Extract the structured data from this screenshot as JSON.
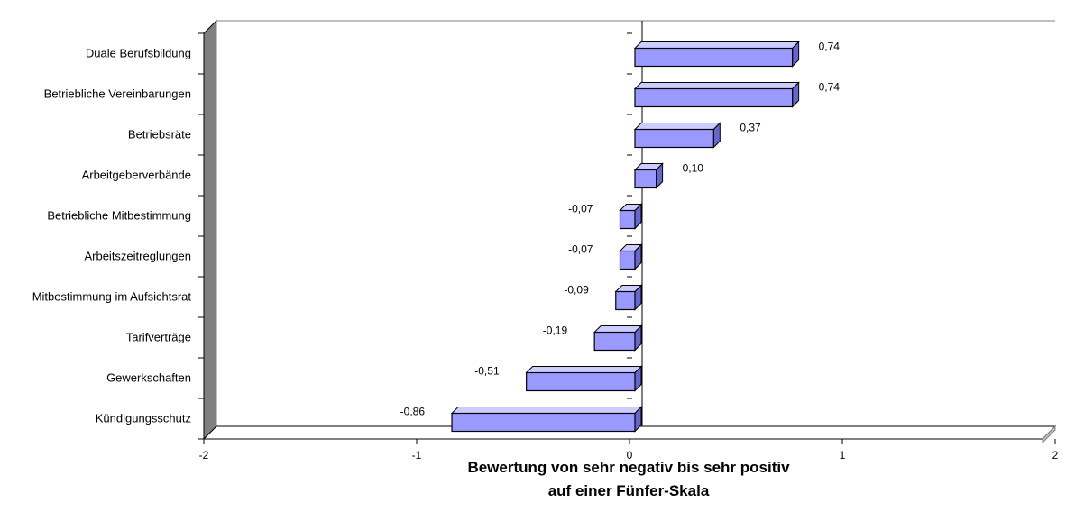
{
  "chart_data": {
    "type": "bar",
    "orientation": "horizontal",
    "categories": [
      "Duale Berufsbildung",
      "Betriebliche Vereinbarungen",
      "Betriebsräte",
      "Arbeitgeberverbände",
      "Betriebliche Mitbestimmung",
      "Arbeitszeitreglungen",
      "Mitbestimmung im Aufsichtsrat",
      "Tarifverträge",
      "Gewerkschaften",
      "Kündigungsschutz"
    ],
    "values": [
      0.74,
      0.74,
      0.37,
      0.1,
      -0.07,
      -0.07,
      -0.09,
      -0.19,
      -0.51,
      -0.86
    ],
    "value_labels": [
      "0,74",
      "0,74",
      "0,37",
      "0,10",
      "-0,07",
      "-0,07",
      "-0,09",
      "-0,19",
      "-0,51",
      "-0,86"
    ],
    "xlim": [
      -2,
      2
    ],
    "x_ticks": [
      -2,
      -1,
      0,
      1,
      2
    ],
    "x_tick_labels": [
      "-2",
      "-1",
      "0",
      "1",
      "2"
    ],
    "xlabel_lines": [
      "Bewertung von sehr negativ bis sehr positiv",
      "auf einer Fünfer-Skala"
    ],
    "grid": false,
    "legend": "none",
    "colors": {
      "bar_front": "#9999ff",
      "bar_side": "#6666cc",
      "bar_top": "#ccccff",
      "bar_outline": "#000000",
      "wall_left": "#808080"
    }
  }
}
